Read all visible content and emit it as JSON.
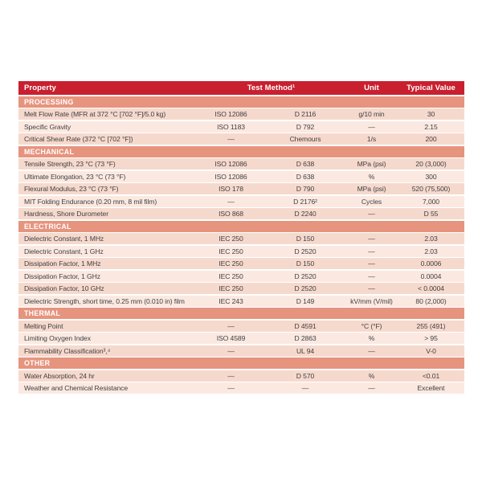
{
  "colors": {
    "header_bg": "#c9202f",
    "section_bg": "#e6947e",
    "row_dark": "#f6d9cd",
    "row_light": "#fbe9e1",
    "header_text": "#ffffff",
    "body_text": "#414042",
    "page_bg": "#ffffff"
  },
  "table": {
    "header": {
      "property": "Property",
      "test_method": "Test Method¹",
      "unit": "Unit",
      "typical_value": "Typical Value"
    },
    "sections": [
      {
        "title": "PROCESSING",
        "rows": [
          {
            "property": "Melt Flow Rate (MFR at 372 °C [702 °F]/5.0 kg)",
            "iso": "ISO 12086",
            "astm": "D 2116",
            "unit": "g/10 min",
            "value": "30"
          },
          {
            "property": "Specific Gravity",
            "iso": "ISO 1183",
            "astm": "D 792",
            "unit": "—",
            "value": "2.15"
          },
          {
            "property": "Critical Shear Rate (372 °C [702 °F])",
            "iso": "—",
            "astm": "Chemours",
            "unit": "1/s",
            "value": "200"
          }
        ]
      },
      {
        "title": "MECHANICAL",
        "rows": [
          {
            "property": "Tensile Strength, 23 °C (73 °F)",
            "iso": "ISO 12086",
            "astm": "D 638",
            "unit": "MPa (psi)",
            "value": "20 (3,000)"
          },
          {
            "property": "Ultimate Elongation, 23 °C (73 °F)",
            "iso": "ISO 12086",
            "astm": "D 638",
            "unit": "%",
            "value": "300"
          },
          {
            "property": "Flexural Modulus, 23 °C (73 °F)",
            "iso": "ISO 178",
            "astm": "D 790",
            "unit": "MPa (psi)",
            "value": "520 (75,500)"
          },
          {
            "property": "MIT Folding Endurance (0.20 mm, 8 mil film)",
            "iso": "—",
            "astm": "D 2176²",
            "unit": "Cycles",
            "value": "7,000"
          },
          {
            "property": "Hardness, Shore Durometer",
            "iso": "ISO 868",
            "astm": "D 2240",
            "unit": "—",
            "value": "D 55"
          }
        ]
      },
      {
        "title": "ELECTRICAL",
        "rows": [
          {
            "property": "Dielectric Constant, 1 MHz",
            "iso": "IEC 250",
            "astm": "D 150",
            "unit": "—",
            "value": "2.03"
          },
          {
            "property": "Dielectric Constant, 1 GHz",
            "iso": "IEC 250",
            "astm": "D 2520",
            "unit": "—",
            "value": "2.03"
          },
          {
            "property": "Dissipation Factor, 1 MHz",
            "iso": "IEC 250",
            "astm": "D 150",
            "unit": "—",
            "value": "0.0006"
          },
          {
            "property": "Dissipation Factor, 1 GHz",
            "iso": "IEC 250",
            "astm": "D 2520",
            "unit": "—",
            "value": "0.0004"
          },
          {
            "property": "Dissipation Factor, 10 GHz",
            "iso": "IEC 250",
            "astm": "D 2520",
            "unit": "—",
            "value": "< 0.0004"
          },
          {
            "property": "Dielectric Strength, short time, 0.25 mm (0.010 in) film",
            "iso": "IEC 243",
            "astm": "D 149",
            "unit": "kV/mm (V/mil)",
            "value": "80 (2,000)"
          }
        ]
      },
      {
        "title": "THERMAL",
        "rows": [
          {
            "property": "Melting Point",
            "iso": "—",
            "astm": "D 4591",
            "unit": "°C (°F)",
            "value": "255 (491)"
          },
          {
            "property": "Limiting Oxygen Index",
            "iso": "ISO 4589",
            "astm": "D 2863",
            "unit": "%",
            "value": "> 95"
          },
          {
            "property": "Flammability Classification³,⁴",
            "iso": "—",
            "astm": "UL 94",
            "unit": "—",
            "value": "V-0"
          }
        ]
      },
      {
        "title": "OTHER",
        "rows": [
          {
            "property": "Water Absorption, 24 hr",
            "iso": "—",
            "astm": "D 570",
            "unit": "%",
            "value": "<0.01"
          },
          {
            "property": "Weather and Chemical Resistance",
            "iso": "—",
            "astm": "—",
            "unit": "—",
            "value": "Excellent"
          }
        ]
      }
    ]
  }
}
